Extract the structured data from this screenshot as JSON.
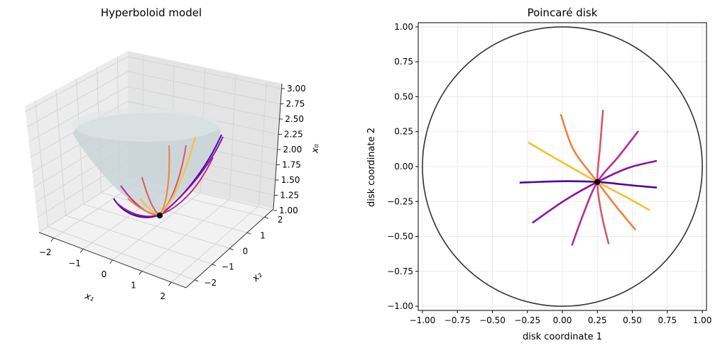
{
  "chart_data": [
    {
      "type": "surface3d",
      "title": "Hyperboloid model",
      "axes": {
        "x1": {
          "label": "x₁",
          "ticks": [
            "−2",
            "−1",
            "0",
            "1",
            "2"
          ],
          "range": [
            -2.5,
            2.5
          ]
        },
        "x2": {
          "label": "x₂",
          "ticks": [
            "−2",
            "−1",
            "0",
            "1",
            "2"
          ],
          "range": [
            -2.5,
            2.5
          ]
        },
        "x0": {
          "label": "x₀",
          "ticks": [
            "1.00",
            "1.25",
            "1.50",
            "1.75",
            "2.00",
            "2.25",
            "2.50",
            "2.75",
            "3.00"
          ],
          "range": [
            1.0,
            3.0
          ]
        }
      },
      "surface": {
        "equation": "x0 = sqrt(1 + x1^2 + x2^2)",
        "color": "#c7d3d5"
      },
      "base_point": {
        "x1": 0.52,
        "x2": -0.24,
        "x0": 1.16
      },
      "geodesic_colors": [
        "#4b05a0",
        "#8a11a6",
        "#b42e8e",
        "#d9566c",
        "#f0803c",
        "#fbbf2c"
      ]
    },
    {
      "type": "line",
      "title": "Poincaré disk",
      "xlabel": "disk coordinate 1",
      "ylabel": "disk coordinate 2",
      "xlim": [
        -1.0,
        1.0
      ],
      "ylim": [
        -1.0,
        1.0
      ],
      "xticks": [
        "−1.00",
        "−0.75",
        "−0.50",
        "−0.25",
        "0.00",
        "0.25",
        "0.50",
        "0.75",
        "1.00"
      ],
      "yticks": [
        "−1.00",
        "−0.75",
        "−0.50",
        "−0.25",
        "0.00",
        "0.25",
        "0.50",
        "0.75",
        "1.00"
      ],
      "grid": true,
      "boundary_circle": {
        "center": [
          0,
          0
        ],
        "radius": 1.0,
        "color": "#333333"
      },
      "base_point": {
        "x": 0.25,
        "y": -0.11
      },
      "series": [
        {
          "color": "#4b05a0",
          "points": [
            [
              -0.3,
              -0.115
            ],
            [
              0.0,
              -0.105
            ],
            [
              0.25,
              -0.11
            ],
            [
              0.5,
              -0.135
            ],
            [
              0.67,
              -0.15
            ]
          ]
        },
        {
          "color": "#8a11a6",
          "points": [
            [
              -0.21,
              -0.4
            ],
            [
              0.02,
              -0.24
            ],
            [
              0.25,
              -0.11
            ],
            [
              0.47,
              -0.01
            ],
            [
              0.67,
              0.04
            ]
          ]
        },
        {
          "color": "#b42e8e",
          "points": [
            [
              0.07,
              -0.56
            ],
            [
              0.15,
              -0.34
            ],
            [
              0.25,
              -0.11
            ],
            [
              0.4,
              0.07
            ],
            [
              0.54,
              0.25
            ]
          ]
        },
        {
          "color": "#d9566c",
          "points": [
            [
              0.33,
              -0.55
            ],
            [
              0.28,
              -0.34
            ],
            [
              0.25,
              -0.11
            ],
            [
              0.27,
              0.15
            ],
            [
              0.29,
              0.4
            ]
          ]
        },
        {
          "color": "#f0803c",
          "points": [
            [
              0.52,
              -0.45
            ],
            [
              0.38,
              -0.28
            ],
            [
              0.25,
              -0.11
            ],
            [
              0.08,
              0.12
            ],
            [
              -0.01,
              0.37
            ]
          ]
        },
        {
          "color": "#fbbf2c",
          "points": [
            [
              0.62,
              -0.31
            ],
            [
              0.44,
              -0.21
            ],
            [
              0.25,
              -0.11
            ],
            [
              0.0,
              0.03
            ],
            [
              -0.24,
              0.17
            ]
          ]
        }
      ]
    }
  ]
}
